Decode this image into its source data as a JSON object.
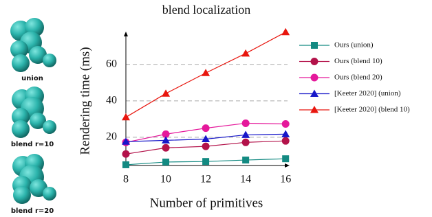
{
  "thumbnails": [
    {
      "label": "union"
    },
    {
      "label": "blend r=10"
    },
    {
      "label": "blend r=20"
    }
  ],
  "chart_data": {
    "type": "line",
    "title": "blend localization",
    "x_label": "Number of primitives",
    "y_label": "Rendering time (ms)",
    "x": [
      8,
      10,
      12,
      14,
      16
    ],
    "xlim": [
      8,
      16.2
    ],
    "xticks": [
      8,
      10,
      12,
      14,
      16
    ],
    "ylim": [
      4.5,
      78
    ],
    "yticks": [
      20,
      40,
      60
    ],
    "grid": true,
    "series": [
      {
        "name": "Ours (union)",
        "color": "#138a82",
        "marker": "square",
        "values": [
          4.9,
          6.4,
          6.7,
          7.5,
          8.2
        ]
      },
      {
        "name": "Ours (blend 10)",
        "color": "#b3124a",
        "marker": "circle",
        "values": [
          10.8,
          14.2,
          15,
          17.2,
          18
        ]
      },
      {
        "name": "Ours (blend 20)",
        "color": "#e5189b",
        "marker": "circle",
        "values": [
          17.2,
          21.7,
          25,
          27.7,
          27.3
        ]
      },
      {
        "name": "[Keeter 2020] (union)",
        "color": "#1717c9",
        "marker": "triangle",
        "values": [
          17.6,
          18.3,
          19,
          21.3,
          21.7
        ]
      },
      {
        "name": "[Keeter 2020] (blend 10)",
        "color": "#e8160e",
        "marker": "triangle",
        "values": [
          31,
          44,
          55.3,
          66,
          77.7
        ]
      }
    ]
  }
}
